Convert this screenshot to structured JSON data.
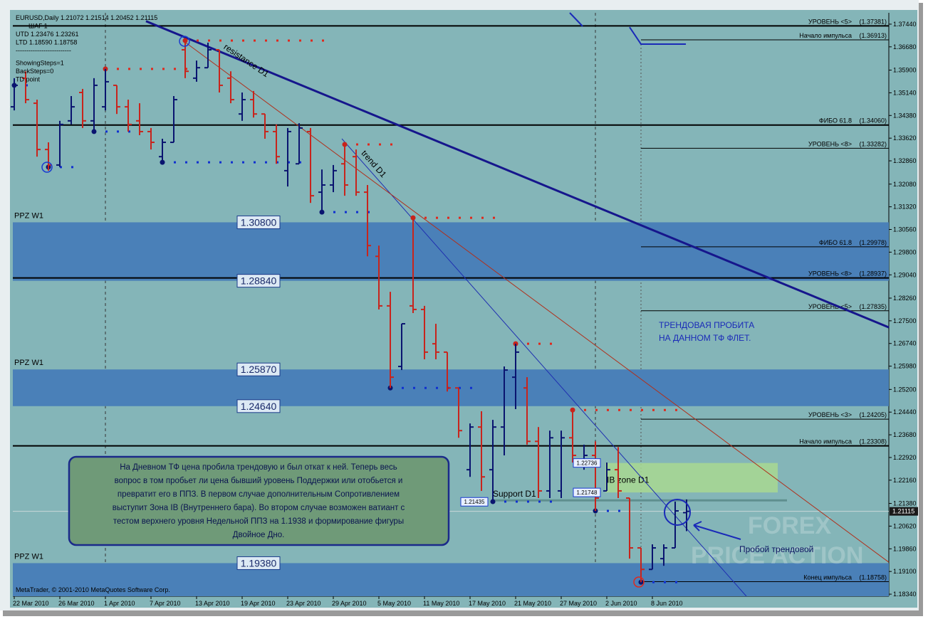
{
  "chart_data": {
    "type": "ohlc",
    "info_lines": [
      "EURUSD,Daily  1.21072 1.21514 1.20452 1.21115",
      "ШАГ 1",
      "UTD 1.23476  1.23261",
      "LTD  1.18590  1.18758",
      "--------------------------",
      "ShowingSteps=1",
      "BackSteps=0",
      "TD point"
    ],
    "copyright": "MetaTrader, © 2001-2010 MetaQuotes Software Corp.",
    "categories": [
      "22 Mar 2010",
      null,
      null,
      null,
      "26 Mar 2010",
      null,
      null,
      null,
      "1 Apr 2010",
      null,
      null,
      null,
      "7 Apr 2010",
      null,
      null,
      null,
      "13 Apr 2010",
      null,
      null,
      null,
      "19 Apr 2010",
      null,
      null,
      null,
      "23 Apr 2010",
      null,
      null,
      null,
      "29 Apr 2010",
      null,
      null,
      null,
      "5 May 2010",
      null,
      null,
      null,
      "11 May 2010",
      null,
      null,
      null,
      "17 May 2010",
      null,
      null,
      null,
      "21 May 2010",
      null,
      null,
      null,
      "27 May 2010",
      null,
      null,
      null,
      "2 Jun 2010",
      null,
      null,
      null,
      "8 Jun 2010",
      null,
      null,
      null
    ],
    "open": [
      1.3467,
      1.3563,
      1.3479,
      1.3324,
      1.3272,
      1.342,
      1.3515,
      1.342,
      1.3467,
      1.3539,
      1.3467,
      1.342,
      1.3384,
      1.33,
      1.3348,
      1.3658,
      1.3563,
      1.3598,
      1.3658,
      1.3563,
      1.3443,
      1.3491,
      1.3443,
      1.3384,
      1.3253,
      1.3276,
      1.3384,
      1.3181,
      1.3205,
      1.3276,
      1.33,
      1.3181,
      1.2966,
      1.28,
      1.2597,
      1.28,
      1.2788,
      1.2673,
      1.2645,
      1.2525,
      1.2251,
      1.2394,
      1.2251,
      1.2394,
      1.2561,
      1.2525,
      1.2346,
      1.218,
      1.218,
      1.2358,
      1.2275,
      1.2299,
      1.218,
      1.2251,
      1.2156,
      1.1989,
      1.1917,
      1.1953,
      1.1989,
      1.21072
    ],
    "high": [
      1.3563,
      1.3586,
      1.3491,
      1.3348,
      1.342,
      1.3503,
      1.3527,
      1.3563,
      1.3594,
      1.3539,
      1.3491,
      1.3479,
      1.3396,
      1.336,
      1.3503,
      1.3689,
      1.3622,
      1.3682,
      1.3658,
      1.3586,
      1.3515,
      1.352,
      1.3443,
      1.3408,
      1.3396,
      1.3412,
      1.3396,
      1.3257,
      1.3272,
      1.3341,
      1.3324,
      1.3205,
      1.3002,
      1.2847,
      1.274,
      1.3095,
      1.28,
      1.274,
      1.2645,
      1.2525,
      1.2406,
      1.2447,
      1.2418,
      1.2597,
      1.2673,
      1.2561,
      1.2394,
      1.2382,
      1.2382,
      1.2451,
      1.2335,
      1.2346,
      1.2275,
      1.2327,
      1.2156,
      1.1989,
      1.2001,
      1.2001,
      1.2144,
      1.21514
    ],
    "low": [
      1.3455,
      1.3479,
      1.33,
      1.3253,
      1.3265,
      1.3408,
      1.3396,
      1.3384,
      1.3455,
      1.3443,
      1.3384,
      1.3372,
      1.3324,
      1.3281,
      1.3348,
      1.3563,
      1.3551,
      1.3598,
      1.3515,
      1.3479,
      1.342,
      1.3431,
      1.336,
      1.3276,
      1.32,
      1.3276,
      1.3145,
      1.3114,
      1.3181,
      1.3169,
      1.3169,
      1.2966,
      1.2788,
      1.2525,
      1.2585,
      1.2776,
      1.2621,
      1.2621,
      1.2513,
      1.2358,
      1.2227,
      1.218,
      1.2144,
      1.2299,
      1.2454,
      1.2335,
      1.2156,
      1.2156,
      1.2156,
      1.2275,
      1.2251,
      1.2113,
      1.218,
      1.2156,
      1.1953,
      1.1874,
      1.1917,
      1.1929,
      1.1989,
      1.20452
    ],
    "close": [
      1.3539,
      1.3491,
      1.3324,
      1.3272,
      1.3408,
      1.3467,
      1.342,
      1.3539,
      1.3551,
      1.3467,
      1.3408,
      1.3384,
      1.3348,
      1.3348,
      1.3491,
      1.3586,
      1.3598,
      1.3658,
      1.3539,
      1.3491,
      1.3491,
      1.3443,
      1.3384,
      1.33,
      1.3384,
      1.3396,
      1.3169,
      1.3205,
      1.3253,
      1.3205,
      1.3181,
      1.3002,
      1.28,
      1.2561,
      1.274,
      1.2788,
      1.2645,
      1.2645,
      1.2525,
      1.2382,
      1.2394,
      1.2227,
      1.2394,
      1.2585,
      1.2645,
      1.2346,
      1.218,
      1.2358,
      1.2358,
      1.2299,
      1.2299,
      1.2156,
      1.2251,
      1.218,
      1.1989,
      1.1917,
      1.1989,
      1.1989,
      1.2113,
      1.21115
    ],
    "up_color": "#0a1470",
    "down_color": "#c8241c",
    "ylim": [
      1.1827,
      1.3782
    ],
    "yticks": [
      {
        "value": 1.3744,
        "label": "1.37440"
      },
      {
        "value": 1.3668,
        "label": "1.36680"
      },
      {
        "value": 1.359,
        "label": "1.35900"
      },
      {
        "value": 1.3514,
        "label": "1.35140"
      },
      {
        "value": 1.3438,
        "label": "1.34380"
      },
      {
        "value": 1.3362,
        "label": "1.33620"
      },
      {
        "value": 1.3286,
        "label": "1.32860"
      },
      {
        "value": 1.3208,
        "label": "1.32080"
      },
      {
        "value": 1.3132,
        "label": "1.31320"
      },
      {
        "value": 1.3056,
        "label": "1.30560"
      },
      {
        "value": 1.298,
        "label": "1.29800"
      },
      {
        "value": 1.2904,
        "label": "1.29040"
      },
      {
        "value": 1.2826,
        "label": "1.28260"
      },
      {
        "value": 1.275,
        "label": "1.27500"
      },
      {
        "value": 1.2674,
        "label": "1.26740"
      },
      {
        "value": 1.2598,
        "label": "1.25980"
      },
      {
        "value": 1.252,
        "label": "1.25200"
      },
      {
        "value": 1.2444,
        "label": "1.24440"
      },
      {
        "value": 1.2368,
        "label": "1.23680"
      },
      {
        "value": 1.2292,
        "label": "1.22920"
      },
      {
        "value": 1.2216,
        "label": "1.22160"
      },
      {
        "value": 1.2138,
        "label": "1.21380"
      },
      {
        "value": 1.2062,
        "label": "1.20620"
      },
      {
        "value": 1.1986,
        "label": "1.19860"
      },
      {
        "value": 1.191,
        "label": "1.19100"
      },
      {
        "value": 1.1834,
        "label": "1.18340"
      }
    ],
    "current": {
      "value": 1.21115,
      "label": "1.21115"
    },
    "zones": [
      {
        "name": "PPZ W1",
        "color": "#4a80b8",
        "top": {
          "value": 1.308,
          "label": "1.30800"
        },
        "bottom": {
          "value": 1.2884,
          "label": "1.28840"
        }
      },
      {
        "name": "PPZ W1",
        "color": "#4a80b8",
        "top": {
          "value": 1.2587,
          "label": "1.25870"
        },
        "bottom": {
          "value": 1.2464,
          "label": "1.24640"
        }
      },
      {
        "name": "PPZ W1",
        "color": "#4a80b8",
        "top": {
          "value": 1.1938,
          "label": "1.19380"
        }
      }
    ],
    "levels": [
      {
        "name": "УРОВЕНЬ <5>",
        "value": 1.37381,
        "label": "(1.37381)",
        "span": "full"
      },
      {
        "name": "Начало импульса",
        "value": 1.36913,
        "label": "(1.36913)",
        "span": "right"
      },
      {
        "name": "ФИБО 61.8",
        "value": 1.3406,
        "label": "(1.34060)",
        "span": "full"
      },
      {
        "name": "УРОВЕНЬ <8>",
        "value": 1.33282,
        "label": "(1.33282)",
        "span": "right"
      },
      {
        "name": "ФИБО 61.8",
        "value": 1.29978,
        "label": "(1.29978)",
        "span": "right"
      },
      {
        "name": "УРОВЕНЬ <8>",
        "value": 1.28937,
        "label": "(1.28937)",
        "span": "full"
      },
      {
        "name": "УРОВЕНЬ <5>",
        "value": 1.27835,
        "label": "(1.27835)",
        "span": "right"
      },
      {
        "name": "УРОВЕНЬ <3>",
        "value": 1.24205,
        "label": "(1.24205)",
        "span": "right"
      },
      {
        "name": "Начало импульса",
        "value": 1.23308,
        "label": "(1.23308)",
        "span": "full"
      },
      {
        "name": "Конец импульса",
        "value": 1.18758,
        "label": "(1.18758)",
        "span": "right"
      }
    ],
    "trendlines": [
      {
        "name": "resistance D1",
        "color": "#16168c",
        "width": 3,
        "x": [
          11.56,
          76.75
        ],
        "y": [
          1.3754,
          1.2728
        ]
      },
      {
        "name": "trend D1",
        "color": "#1f2fb0",
        "width": 1,
        "x": [
          28.75,
          64.25
        ],
        "y": [
          1.336,
          1.1827
        ]
      },
      {
        "color": "#b0301c",
        "width": 1,
        "x": [
          14.875,
          76.75
        ],
        "y": [
          1.3687,
          1.1941
        ]
      },
      {
        "color": "#1a2ab8",
        "width": 2,
        "x": [
          48.75,
          49.875
        ],
        "y": [
          1.3782,
          1.3737
        ]
      },
      {
        "color": "#1a2ab8",
        "width": 2,
        "x": [
          54,
          55,
          58.94
        ],
        "y": [
          1.3734,
          1.3677,
          1.3677
        ]
      }
    ],
    "dotted": [
      {
        "color": "#e0281c",
        "value": 1.3689,
        "from": 15,
        "to": 28
      },
      {
        "color": "#e0281c",
        "value": 1.3594,
        "from": 8,
        "to": 16
      },
      {
        "color": "#e0281c",
        "value": 1.3341,
        "from": 29,
        "to": 34
      },
      {
        "color": "#e0281c",
        "value": 1.3095,
        "from": 35,
        "to": 43
      },
      {
        "color": "#e0281c",
        "value": 1.2673,
        "from": 44,
        "to": 48
      },
      {
        "color": "#e0281c",
        "value": 1.2451,
        "from": 49,
        "to": 59
      },
      {
        "color": "#1030d0",
        "value": 1.3539,
        "from": 0,
        "to": 2
      },
      {
        "color": "#1030d0",
        "value": 1.3265,
        "from": 3,
        "to": 6
      },
      {
        "color": "#1030d0",
        "value": 1.3384,
        "from": 7,
        "to": 11
      },
      {
        "color": "#1030d0",
        "value": 1.3281,
        "from": 13,
        "to": 26
      },
      {
        "color": "#1030d0",
        "value": 1.3114,
        "from": 27,
        "to": 32
      },
      {
        "color": "#1030d0",
        "value": 1.2525,
        "from": 33,
        "to": 41
      },
      {
        "color": "#1030d0",
        "value": 1.2144,
        "from": 42,
        "to": 48
      },
      {
        "color": "#1030d0",
        "value": 1.2113,
        "from": 51,
        "to": 54
      },
      {
        "color": "#1030d0",
        "value": 1.1874,
        "from": 55,
        "to": 59
      }
    ],
    "ib_zone": {
      "name": "IB zone D1",
      "color": "#a8d890",
      "top": {
        "value": 1.22736,
        "label": "1.22736"
      },
      "bottom": {
        "value": 1.21748,
        "label": "1.21748"
      }
    },
    "support": {
      "name": "Support D1",
      "value": 1.21435,
      "label": "1.21435"
    },
    "note_right": [
      "ТРЕНДОВАЯ ПРОБИТА",
      "НА ДАННОМ ТФ ФЛЕТ."
    ],
    "callout": [
      "На Дневном ТФ цена пробила трендовую и был откат к ней. Теперь весь",
      "вопрос в том пробьет ли цена бывший уровень Поддержки или отобьется и",
      "превратит его в ППЗ. В первом случае дополнительным Сопротивлением",
      "выступит Зона IB (Внутреннего бара). Во втором случае возможен ватиант с",
      "тестом верхнего уровня Недельной ППЗ на 1.1938 и формирование фигуры",
      "Двойное Дно."
    ],
    "breakout_label": "Пробой трендовой",
    "watermark": [
      "FOREX",
      "PRICE ACTION"
    ]
  }
}
